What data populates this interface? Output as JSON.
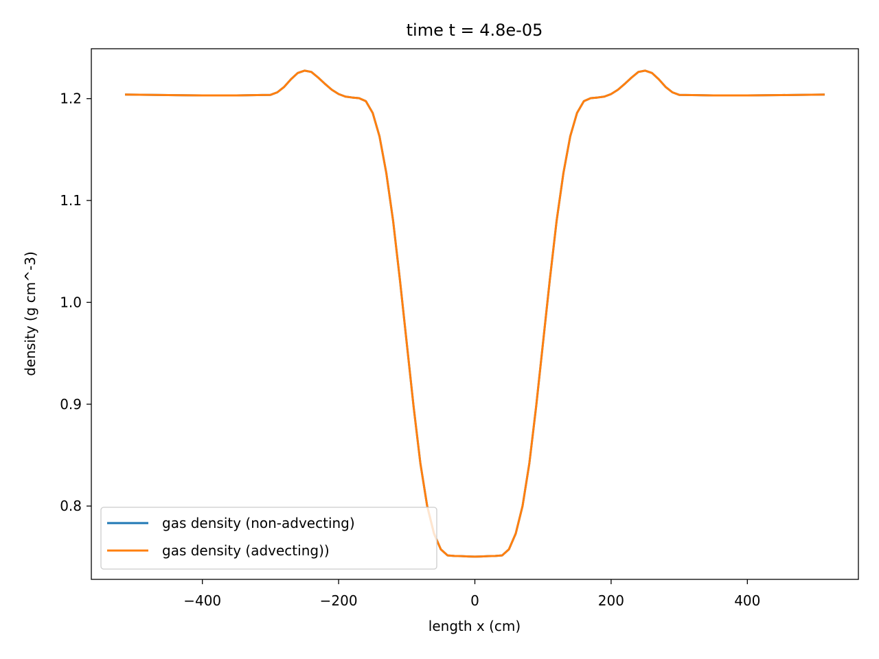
{
  "chart_data": {
    "type": "line",
    "title": "time t = 4.8e-05",
    "xlabel": "length x (cm)",
    "ylabel": "density (g cm^-3)",
    "xlim": [
      -563,
      563
    ],
    "ylim": [
      0.728,
      1.249
    ],
    "xticks": [
      -400,
      -200,
      0,
      200,
      400
    ],
    "xtick_labels": [
      "−400",
      "−200",
      "0",
      "200",
      "400"
    ],
    "yticks": [
      0.8,
      0.9,
      1.0,
      1.1,
      1.2
    ],
    "ytick_labels": [
      "0.8",
      "0.9",
      "1.0",
      "1.1",
      "1.2"
    ],
    "grid": false,
    "legend_position": "lower-left",
    "series": [
      {
        "name": "gas density (non-advecting)",
        "color": "#1f77b4",
        "x": [
          -512,
          -450,
          -400,
          -350,
          -300,
          -290,
          -280,
          -270,
          -260,
          -250,
          -240,
          -230,
          -220,
          -210,
          -200,
          -190,
          -180,
          -170,
          -160,
          -150,
          -140,
          -130,
          -120,
          -110,
          -100,
          -90,
          -80,
          -70,
          -60,
          -50,
          -40,
          -30,
          -20,
          -10,
          0,
          10,
          20,
          30,
          40,
          50,
          60,
          70,
          80,
          90,
          100,
          110,
          120,
          130,
          140,
          150,
          160,
          170,
          180,
          190,
          200,
          210,
          220,
          230,
          240,
          250,
          260,
          270,
          280,
          290,
          300,
          350,
          400,
          450,
          512
        ],
        "y": [
          1.204,
          1.2035,
          1.2032,
          1.2032,
          1.2037,
          1.2062,
          1.2115,
          1.219,
          1.2252,
          1.2275,
          1.2262,
          1.2207,
          1.2145,
          1.2087,
          1.2045,
          1.202,
          1.2011,
          1.2005,
          1.1975,
          1.186,
          1.163,
          1.127,
          1.08,
          1.022,
          0.96,
          0.898,
          0.842,
          0.8,
          0.773,
          0.7575,
          0.7515,
          0.751,
          0.7508,
          0.7505,
          0.7503,
          0.7505,
          0.7508,
          0.751,
          0.7515,
          0.7575,
          0.773,
          0.8,
          0.842,
          0.898,
          0.96,
          1.022,
          1.08,
          1.127,
          1.163,
          1.186,
          1.1975,
          1.2005,
          1.2011,
          1.202,
          1.2045,
          1.2087,
          1.2145,
          1.2207,
          1.2262,
          1.2275,
          1.2252,
          1.219,
          1.2115,
          1.2062,
          1.2037,
          1.2032,
          1.2032,
          1.2035,
          1.204
        ]
      },
      {
        "name": "gas density (advecting))",
        "color": "#ff7f0e",
        "x": [
          -512,
          -450,
          -400,
          -350,
          -300,
          -290,
          -280,
          -270,
          -260,
          -250,
          -240,
          -230,
          -220,
          -210,
          -200,
          -190,
          -180,
          -170,
          -160,
          -150,
          -140,
          -130,
          -120,
          -110,
          -100,
          -90,
          -80,
          -70,
          -60,
          -50,
          -40,
          -30,
          -20,
          -10,
          0,
          10,
          20,
          30,
          40,
          50,
          60,
          70,
          80,
          90,
          100,
          110,
          120,
          130,
          140,
          150,
          160,
          170,
          180,
          190,
          200,
          210,
          220,
          230,
          240,
          250,
          260,
          270,
          280,
          290,
          300,
          350,
          400,
          450,
          512
        ],
        "y": [
          1.204,
          1.2035,
          1.2032,
          1.2032,
          1.2037,
          1.2062,
          1.2115,
          1.219,
          1.2252,
          1.2275,
          1.2262,
          1.2207,
          1.2145,
          1.2087,
          1.2045,
          1.202,
          1.2011,
          1.2005,
          1.1975,
          1.186,
          1.163,
          1.127,
          1.08,
          1.022,
          0.96,
          0.898,
          0.842,
          0.8,
          0.773,
          0.7575,
          0.7515,
          0.751,
          0.7508,
          0.7505,
          0.7503,
          0.7505,
          0.7508,
          0.751,
          0.7515,
          0.7575,
          0.773,
          0.8,
          0.842,
          0.898,
          0.96,
          1.022,
          1.08,
          1.127,
          1.163,
          1.186,
          1.1975,
          1.2005,
          1.2011,
          1.202,
          1.2045,
          1.2087,
          1.2145,
          1.2207,
          1.2262,
          1.2275,
          1.2252,
          1.219,
          1.2115,
          1.2062,
          1.2037,
          1.2032,
          1.2032,
          1.2035,
          1.204
        ]
      }
    ]
  }
}
